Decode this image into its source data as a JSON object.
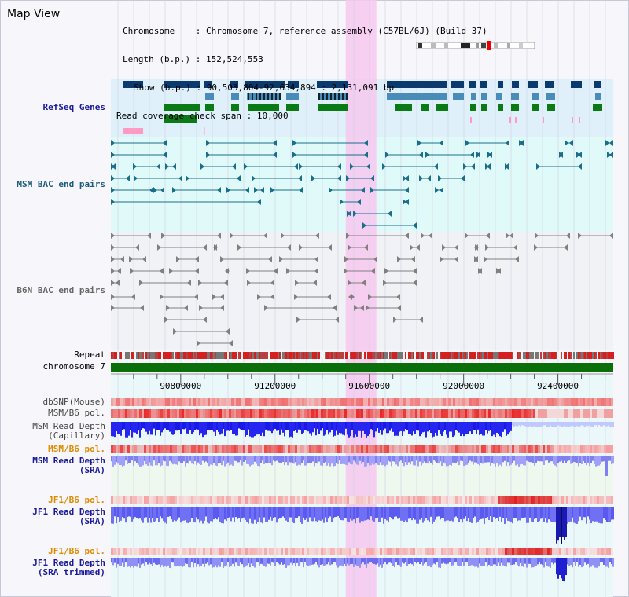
{
  "view": {
    "title": "Map View",
    "chromosome_label": "Chromosome",
    "chromosome_value": "Chromosome 7, reference assembly (C57BL/6J) (Build 37)",
    "length_label": "Length (b.p.)",
    "length_value": "152,524,553",
    "show_label": "Show (b.p.)",
    "show_value": "90,503,804-92,634,894 : 2,131,091 bp",
    "coverage_label": "Read coverage check span",
    "coverage_value": "10,000"
  },
  "tracks": {
    "refseq": "RefSeq Genes",
    "msm_bac": "MSM BAC end pairs",
    "b6n_bac": "B6N BAC end pairs",
    "repeat": "Repeat",
    "chromosome": "chromosome 7",
    "dbsnp": "dbSNP(Mouse)",
    "msm_pol": "MSM/B6 pol.",
    "msm_depth_cap": "MSM Read Depth",
    "msm_depth_cap_sub": "(Capillary)",
    "msm_pol2": "MSM/B6 pol.",
    "msm_depth_sra": "MSM Read Depth",
    "msm_depth_sra_sub": "(SRA)",
    "jf1_pol": "JF1/B6 pol.",
    "jf1_depth_sra": "JF1 Read Depth",
    "jf1_depth_sra_sub": "(SRA)",
    "jf1_pol2": "JF1/B6 pol.",
    "jf1_depth_trim": "JF1 Read Depth",
    "jf1_depth_trim_sub": "(SRA trimmed)"
  },
  "axis": {
    "ticks": [
      "90800000",
      "91200000",
      "91600000",
      "92000000",
      "92400000"
    ],
    "tick_values": [
      90800000,
      91200000,
      91600000,
      92000000,
      92400000
    ],
    "range": [
      90503804,
      92634894
    ]
  },
  "highlight_range": [
    91500000,
    91630000
  ],
  "colors": {
    "refseq_dark": "#0a3a6e",
    "refseq_mid": "#4a8cb8",
    "refseq_green": "#0a7a14",
    "refseq_pink": "#ff9ac4",
    "msm_bac": "#1a6e8a",
    "b6n_bac": "#808080",
    "chromosome": "#0a6e0a",
    "depth_blue": "#2a2ae0",
    "highlight": "#f6c8ee",
    "label_blue": "#1a1a9a",
    "label_teal": "#1a5a7a",
    "label_orange": "#e08a00"
  }
}
